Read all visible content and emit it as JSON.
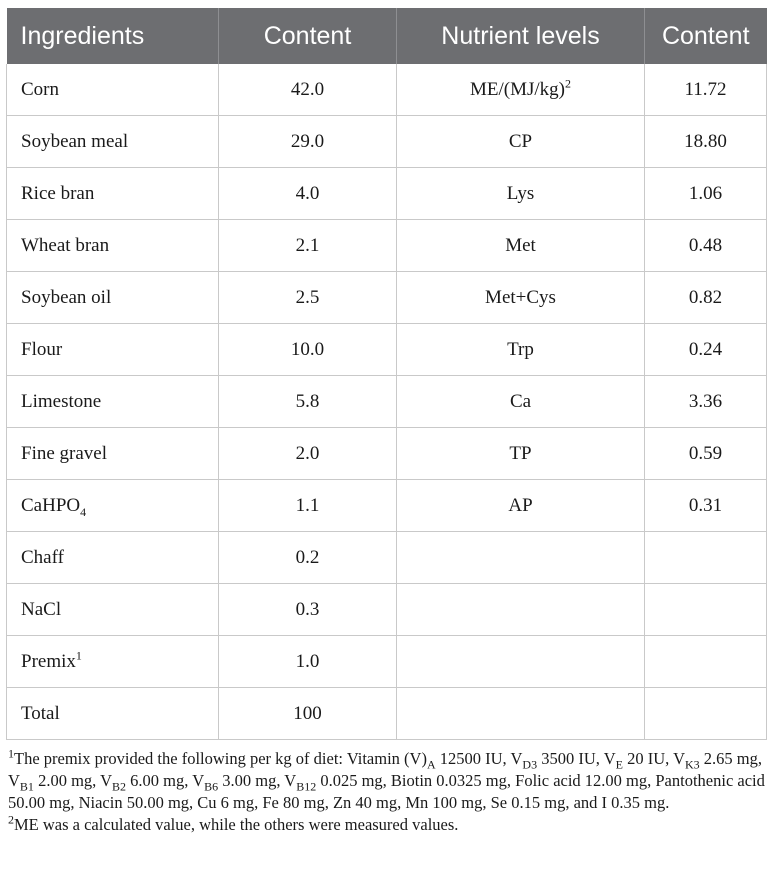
{
  "table": {
    "headers": [
      "Ingredients",
      "Content",
      "Nutrient levels",
      "Content"
    ],
    "rows": [
      {
        "ingredient": "Corn",
        "content": "42.0",
        "nutrient": "ME/(MJ/kg)",
        "nutrient_sup": "2",
        "value": "11.72"
      },
      {
        "ingredient": "Soybean meal",
        "content": "29.0",
        "nutrient": "CP",
        "value": "18.80"
      },
      {
        "ingredient": "Rice bran",
        "content": "4.0",
        "nutrient": "Lys",
        "value": "1.06"
      },
      {
        "ingredient": "Wheat bran",
        "content": "2.1",
        "nutrient": "Met",
        "value": "0.48"
      },
      {
        "ingredient": "Soybean oil",
        "content": "2.5",
        "nutrient": "Met+Cys",
        "value": "0.82"
      },
      {
        "ingredient": "Flour",
        "content": "10.0",
        "nutrient": "Trp",
        "value": "0.24"
      },
      {
        "ingredient": "Limestone",
        "content": "5.8",
        "nutrient": "Ca",
        "value": "3.36"
      },
      {
        "ingredient": "Fine gravel",
        "content": "2.0",
        "nutrient": "TP",
        "value": "0.59"
      },
      {
        "ingredient": "CaHPO",
        "ingredient_sub": "4",
        "content": "1.1",
        "nutrient": "AP",
        "value": "0.31"
      },
      {
        "ingredient": "Chaff",
        "content": "0.2",
        "nutrient": "",
        "value": ""
      },
      {
        "ingredient": "NaCl",
        "content": "0.3",
        "nutrient": "",
        "value": ""
      },
      {
        "ingredient": "Premix",
        "ingredient_sup": "1",
        "content": "1.0",
        "nutrient": "",
        "value": ""
      },
      {
        "ingredient": "Total",
        "content": "100",
        "nutrient": "",
        "value": ""
      }
    ]
  },
  "footnotes": {
    "note1_mark": "1",
    "note1_parts": [
      {
        "t": "The premix provided the following per kg of diet: Vitamin (V)"
      },
      {
        "t": "A",
        "sub": true
      },
      {
        "t": " 12500 IU, V"
      },
      {
        "t": "D3",
        "sub": true
      },
      {
        "t": " 3500 IU, V"
      },
      {
        "t": "E",
        "sub": true
      },
      {
        "t": " 20 IU, V"
      },
      {
        "t": "K3",
        "sub": true
      },
      {
        "t": " 2.65 mg, V"
      },
      {
        "t": "B1",
        "sub": true
      },
      {
        "t": " 2.00 mg, V"
      },
      {
        "t": "B2",
        "sub": true
      },
      {
        "t": " 6.00 mg, V"
      },
      {
        "t": "B6",
        "sub": true
      },
      {
        "t": " 3.00 mg, V"
      },
      {
        "t": "B12",
        "sub": true
      },
      {
        "t": " 0.025 mg, Biotin 0.0325 mg, Folic acid 12.00 mg, Pantothenic acid 50.00 mg, Niacin 50.00 mg, Cu 6 mg, Fe 80 mg, Zn 40 mg, Mn 100 mg, Se 0.15 mg, and I 0.35 mg."
      }
    ],
    "note2_mark": "2",
    "note2_text": "ME was a calculated value, while the others were measured values."
  }
}
